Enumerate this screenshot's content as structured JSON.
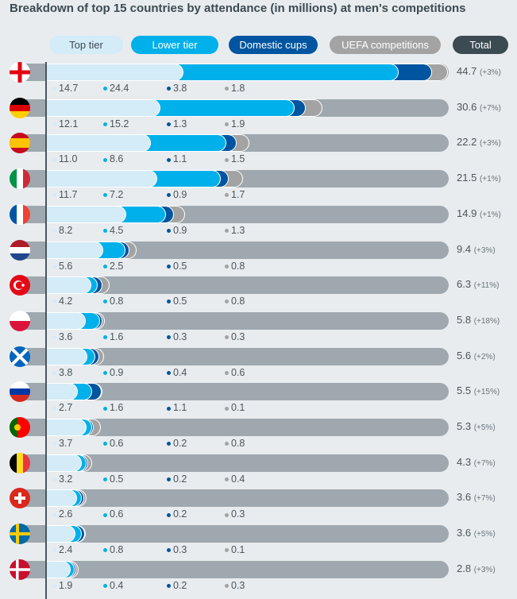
{
  "chart_data": {
    "type": "bar",
    "stacked": true,
    "orientation": "horizontal",
    "title": "Breakdown of top 15 countries by attendance (in millions) at men's competitions",
    "legend": [
      "Top tier",
      "Lower tier",
      "Domestic cups",
      "UEFA competitions",
      "Total"
    ],
    "legend_placement": "top",
    "colors": {
      "Top tier": "#d4ebf8",
      "Lower tier": "#00b0ea",
      "Domestic cups": "#0055a0",
      "UEFA competitions": "#a3a3a3",
      "Total": "#3c4a52",
      "track": "#9ea8ae"
    },
    "categories": [
      "England",
      "Germany",
      "Spain",
      "Italy",
      "France",
      "Netherlands",
      "Turkey",
      "Poland",
      "Scotland",
      "Russia",
      "Portugal",
      "Belgium",
      "Switzerland",
      "Sweden",
      "Denmark"
    ],
    "series": [
      {
        "name": "Top tier",
        "values": [
          14.7,
          12.1,
          11.0,
          11.7,
          8.2,
          5.6,
          4.2,
          3.6,
          3.8,
          2.7,
          3.7,
          3.2,
          2.6,
          2.4,
          1.9
        ]
      },
      {
        "name": "Lower tier",
        "values": [
          24.4,
          15.2,
          8.6,
          7.2,
          4.5,
          2.5,
          0.8,
          1.6,
          0.9,
          1.6,
          0.6,
          0.5,
          0.6,
          0.8,
          0.4
        ]
      },
      {
        "name": "Domestic cups",
        "values": [
          3.8,
          1.3,
          1.1,
          0.9,
          0.9,
          0.5,
          0.5,
          0.3,
          0.4,
          1.1,
          0.2,
          0.2,
          0.2,
          0.3,
          0.2
        ]
      },
      {
        "name": "UEFA competitions",
        "values": [
          1.8,
          1.9,
          1.5,
          1.7,
          1.3,
          0.8,
          0.8,
          0.3,
          0.6,
          0.1,
          0.8,
          0.4,
          0.3,
          0.1,
          0.3
        ]
      }
    ],
    "totals": [
      "44.7",
      "30.6",
      "22.2",
      "21.5",
      "14.9",
      "9.4",
      "6.3",
      "5.8",
      "5.6",
      "5.5",
      "5.3",
      "4.3",
      "3.6",
      "3.6",
      "2.8"
    ],
    "changes": [
      "(+3%)",
      "(+7%)",
      "(+3%)",
      "(+1%)",
      "(+1%)",
      "(+3%)",
      "(+11%)",
      "(+18%)",
      "(+2%)",
      "(+15%)",
      "(+5%)",
      "(+7%)",
      "(+7%)",
      "(+5%)",
      "(+3%)"
    ],
    "flags": [
      "england",
      "germany",
      "spain",
      "italy",
      "france",
      "netherlands",
      "turkey",
      "poland",
      "scotland",
      "russia",
      "portugal",
      "belgium",
      "switzerland",
      "sweden",
      "denmark"
    ],
    "xlim": [
      0,
      45
    ]
  }
}
